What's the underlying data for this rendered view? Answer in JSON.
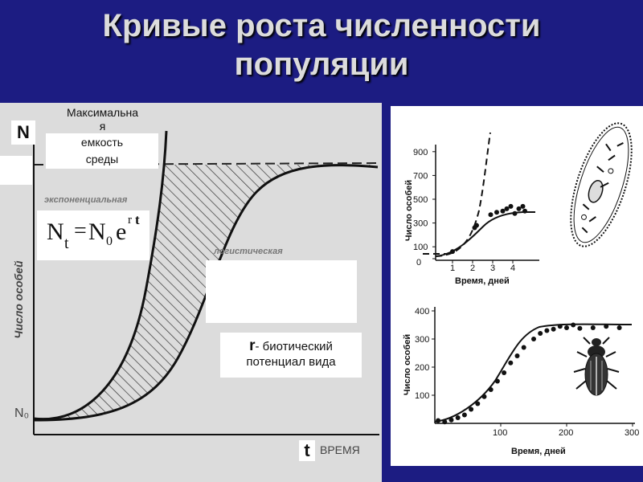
{
  "title_line1": "Кривые роста численности",
  "title_line2": "популяции",
  "main_chart": {
    "n_label": "N",
    "n0_label": "N₀",
    "t_label": "t",
    "x_axis_label": "ВРЕМЯ",
    "y_axis_label": "Число особей",
    "capacity_lines": [
      "Максимальна",
      "я",
      "емкость",
      "среды"
    ],
    "exponential_label": "экспоненциальная",
    "logistic_label": "логистическая",
    "formula": {
      "N": "N",
      "t": "t",
      "eq": "=",
      "N0": "N",
      "zero": "0",
      "e": "e",
      "r": "r",
      "t2": "t"
    },
    "r_letter": "r",
    "r_text_line1": "- биотический",
    "r_text_line2": "потенциал вида"
  },
  "chart_data": [
    {
      "type": "scatter",
      "xlabel": "Время, дней",
      "ylabel": "Число особей",
      "x_ticks": [
        1,
        2,
        3,
        4
      ],
      "y_ticks": [
        0,
        100,
        300,
        500,
        700,
        900
      ],
      "points": [
        [
          1,
          60
        ],
        [
          2.1,
          260
        ],
        [
          2.2,
          280
        ],
        [
          2.9,
          370
        ],
        [
          3.2,
          390
        ],
        [
          3.5,
          400
        ],
        [
          3.7,
          420
        ],
        [
          3.9,
          440
        ],
        [
          4.1,
          380
        ],
        [
          4.3,
          420
        ],
        [
          4.5,
          440
        ],
        [
          4.6,
          400
        ]
      ]
    },
    {
      "type": "scatter",
      "xlabel": "Время, дней",
      "ylabel": "Число особей",
      "x_ticks": [
        100,
        200,
        300
      ],
      "y_ticks": [
        100,
        200,
        300,
        400
      ],
      "points": [
        [
          5,
          10
        ],
        [
          15,
          5
        ],
        [
          25,
          12
        ],
        [
          35,
          20
        ],
        [
          45,
          30
        ],
        [
          55,
          50
        ],
        [
          65,
          70
        ],
        [
          75,
          95
        ],
        [
          85,
          120
        ],
        [
          95,
          150
        ],
        [
          105,
          180
        ],
        [
          115,
          215
        ],
        [
          125,
          240
        ],
        [
          135,
          270
        ],
        [
          150,
          300
        ],
        [
          160,
          320
        ],
        [
          170,
          330
        ],
        [
          180,
          335
        ],
        [
          190,
          345
        ],
        [
          200,
          340
        ],
        [
          210,
          350
        ],
        [
          220,
          338
        ],
        [
          240,
          340
        ],
        [
          260,
          345
        ],
        [
          280,
          340
        ]
      ]
    }
  ]
}
